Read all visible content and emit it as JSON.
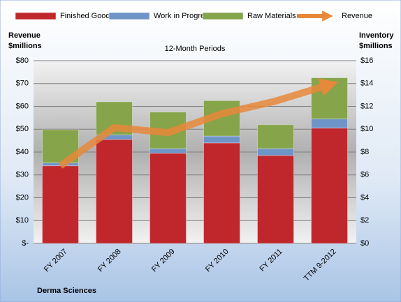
{
  "chart_data": {
    "type": "stacked-bar-line",
    "title": "12-Month Periods",
    "y_label": [
      "Revenue",
      "$millions"
    ],
    "y2_label": [
      "Inventory",
      "$millions"
    ],
    "footer": "Derma Sciences",
    "categories": [
      "FY 2007",
      "FY 2008",
      "FY 2009",
      "FY 2010",
      "FY 2011",
      "TTM 9-2012"
    ],
    "series": [
      {
        "name": "Finished Goods",
        "color": "#c0272d",
        "type": "bar",
        "axis": "y2",
        "values": [
          6.8,
          9.1,
          7.9,
          8.8,
          7.7,
          10.1
        ]
      },
      {
        "name": "Work in Progress",
        "color": "#6f94c8",
        "type": "bar",
        "axis": "y2",
        "values": [
          0.25,
          0.4,
          0.4,
          0.6,
          0.6,
          0.8
        ]
      },
      {
        "name": "Raw Materials",
        "color": "#86a44a",
        "type": "bar",
        "axis": "y2",
        "values": [
          2.9,
          2.9,
          3.2,
          3.1,
          2.1,
          3.6
        ]
      },
      {
        "name": "Revenue",
        "color": "#e8883a",
        "type": "line",
        "axis": "y",
        "values": [
          34,
          50.7,
          48.5,
          56.8,
          62.3,
          69.5
        ]
      }
    ],
    "ylim": [
      0,
      80
    ],
    "yticks": [
      {
        "value": 0,
        "label": "$-"
      },
      {
        "value": 10,
        "label": "$10"
      },
      {
        "value": 20,
        "label": "$20"
      },
      {
        "value": 30,
        "label": "$30"
      },
      {
        "value": 40,
        "label": "$40"
      },
      {
        "value": 50,
        "label": "$50"
      },
      {
        "value": 60,
        "label": "$60"
      },
      {
        "value": 70,
        "label": "$70"
      },
      {
        "value": 80,
        "label": "$80"
      }
    ],
    "y2lim": [
      0,
      16
    ],
    "y2ticks": [
      {
        "value": 0,
        "label": "$0"
      },
      {
        "value": 2,
        "label": "$2"
      },
      {
        "value": 4,
        "label": "$4"
      },
      {
        "value": 6,
        "label": "$6"
      },
      {
        "value": 8,
        "label": "$8"
      },
      {
        "value": 10,
        "label": "$10"
      },
      {
        "value": 12,
        "label": "$12"
      },
      {
        "value": 14,
        "label": "$14"
      },
      {
        "value": 16,
        "label": "$16"
      }
    ],
    "grid": true
  }
}
